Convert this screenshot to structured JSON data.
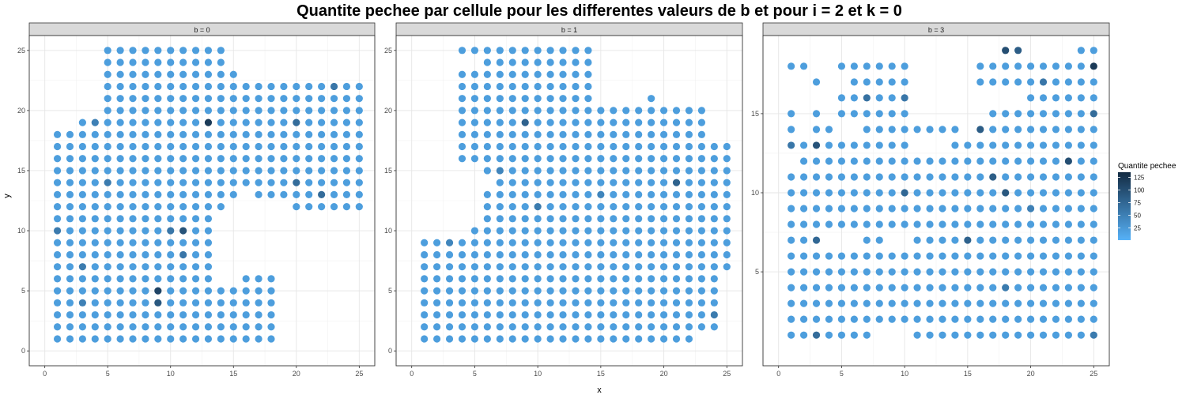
{
  "chart_data": {
    "type": "scatter",
    "title": "Quantite pechee par cellule pour les differentes valeurs de b et pour i = 2 et k = 0",
    "xlabel": "x",
    "ylabel": "y",
    "grid": true,
    "legend": {
      "title": "Quantite pechee",
      "placement": "right",
      "ticks": [
        125,
        100,
        75,
        50,
        25
      ],
      "range": [
        1,
        135
      ],
      "low_color": "#56B1F7",
      "high_color": "#132B43"
    },
    "panels": [
      {
        "strip": "b = 0",
        "xlim": [
          0,
          25
        ],
        "ylim": [
          0,
          25
        ],
        "xticks": [
          0,
          5,
          10,
          15,
          20,
          25
        ],
        "yticks": [
          0,
          5,
          10,
          15,
          20,
          25
        ],
        "rows": [
          {
            "y": 25,
            "xs": [
              [
                5,
                14
              ]
            ]
          },
          {
            "y": 24,
            "xs": [
              [
                5,
                14
              ]
            ]
          },
          {
            "y": 23,
            "xs": [
              [
                5,
                15
              ]
            ]
          },
          {
            "y": 22,
            "xs": [
              [
                5,
                25
              ]
            ]
          },
          {
            "y": 21,
            "xs": [
              [
                5,
                25
              ]
            ]
          },
          {
            "y": 20,
            "xs": [
              [
                5,
                25
              ]
            ]
          },
          {
            "y": 19,
            "xs": [
              [
                3,
                25
              ]
            ]
          },
          {
            "y": 18,
            "xs": [
              [
                1,
                25
              ]
            ]
          },
          {
            "y": 17,
            "xs": [
              [
                1,
                25
              ]
            ]
          },
          {
            "y": 16,
            "xs": [
              [
                1,
                25
              ]
            ]
          },
          {
            "y": 15,
            "xs": [
              [
                1,
                25
              ]
            ]
          },
          {
            "y": 14,
            "xs": [
              [
                1,
                25
              ]
            ]
          },
          {
            "y": 13,
            "xs": [
              [
                1,
                15
              ],
              [
                17,
                25
              ]
            ]
          },
          {
            "y": 12,
            "xs": [
              [
                1,
                14
              ],
              [
                20,
                25
              ]
            ]
          },
          {
            "y": 11,
            "xs": [
              [
                1,
                13
              ]
            ]
          },
          {
            "y": 10,
            "xs": [
              [
                1,
                13
              ]
            ]
          },
          {
            "y": 9,
            "xs": [
              [
                1,
                13
              ]
            ]
          },
          {
            "y": 8,
            "xs": [
              [
                1,
                13
              ]
            ]
          },
          {
            "y": 7,
            "xs": [
              [
                1,
                13
              ]
            ]
          },
          {
            "y": 6,
            "xs": [
              [
                1,
                13
              ],
              [
                16,
                18
              ]
            ]
          },
          {
            "y": 5,
            "xs": [
              [
                1,
                18
              ]
            ]
          },
          {
            "y": 4,
            "xs": [
              [
                1,
                18
              ]
            ]
          },
          {
            "y": 3,
            "xs": [
              [
                1,
                18
              ]
            ]
          },
          {
            "y": 2,
            "xs": [
              [
                1,
                18
              ]
            ]
          },
          {
            "y": 1,
            "xs": [
              [
                1,
                18
              ]
            ]
          }
        ],
        "highlights": [
          {
            "x": 13,
            "y": 19,
            "value": 120
          },
          {
            "x": 9,
            "y": 5,
            "value": 110
          },
          {
            "x": 11,
            "y": 10,
            "value": 95
          },
          {
            "x": 9,
            "y": 4,
            "value": 90
          },
          {
            "x": 20,
            "y": 19,
            "value": 70
          },
          {
            "x": 20,
            "y": 14,
            "value": 70
          },
          {
            "x": 22,
            "y": 13,
            "value": 70
          },
          {
            "x": 23,
            "y": 22,
            "value": 60
          },
          {
            "x": 10,
            "y": 10,
            "value": 60
          },
          {
            "x": 11,
            "y": 8,
            "value": 60
          },
          {
            "x": 1,
            "y": 10,
            "value": 55
          },
          {
            "x": 3,
            "y": 7,
            "value": 55
          },
          {
            "x": 5,
            "y": 14,
            "value": 55
          },
          {
            "x": 3,
            "y": 4,
            "value": 50
          },
          {
            "x": 4,
            "y": 19,
            "value": 50
          }
        ]
      },
      {
        "strip": "b = 1",
        "xlim": [
          0,
          25
        ],
        "ylim": [
          0,
          25
        ],
        "xticks": [
          0,
          5,
          10,
          15,
          20,
          25
        ],
        "yticks": [
          0,
          5,
          10,
          15,
          20,
          25
        ],
        "rows": [
          {
            "y": 25,
            "xs": [
              [
                4,
                14
              ]
            ]
          },
          {
            "y": 24,
            "xs": [
              [
                6,
                14
              ]
            ]
          },
          {
            "y": 23,
            "xs": [
              [
                4,
                14
              ]
            ]
          },
          {
            "y": 22,
            "xs": [
              [
                4,
                14
              ]
            ]
          },
          {
            "y": 21,
            "xs": [
              [
                4,
                14
              ],
              [
                19,
                19
              ]
            ]
          },
          {
            "y": 20,
            "xs": [
              [
                4,
                23
              ]
            ]
          },
          {
            "y": 19,
            "xs": [
              [
                4,
                23
              ]
            ]
          },
          {
            "y": 18,
            "xs": [
              [
                4,
                23
              ]
            ]
          },
          {
            "y": 17,
            "xs": [
              [
                4,
                25
              ]
            ]
          },
          {
            "y": 16,
            "xs": [
              [
                4,
                25
              ]
            ]
          },
          {
            "y": 15,
            "xs": [
              [
                6,
                25
              ]
            ]
          },
          {
            "y": 14,
            "xs": [
              [
                7,
                25
              ]
            ]
          },
          {
            "y": 13,
            "xs": [
              [
                6,
                25
              ]
            ]
          },
          {
            "y": 12,
            "xs": [
              [
                6,
                25
              ]
            ]
          },
          {
            "y": 11,
            "xs": [
              [
                6,
                25
              ]
            ]
          },
          {
            "y": 10,
            "xs": [
              [
                5,
                25
              ]
            ]
          },
          {
            "y": 9,
            "xs": [
              [
                1,
                25
              ]
            ]
          },
          {
            "y": 8,
            "xs": [
              [
                1,
                25
              ]
            ]
          },
          {
            "y": 7,
            "xs": [
              [
                1,
                25
              ]
            ]
          },
          {
            "y": 6,
            "xs": [
              [
                1,
                24
              ]
            ]
          },
          {
            "y": 5,
            "xs": [
              [
                1,
                24
              ]
            ]
          },
          {
            "y": 4,
            "xs": [
              [
                1,
                24
              ]
            ]
          },
          {
            "y": 3,
            "xs": [
              [
                1,
                24
              ]
            ]
          },
          {
            "y": 2,
            "xs": [
              [
                1,
                24
              ]
            ]
          },
          {
            "y": 1,
            "xs": [
              [
                1,
                22
              ]
            ]
          }
        ],
        "highlights": [
          {
            "x": 9,
            "y": 19,
            "value": 80
          },
          {
            "x": 21,
            "y": 14,
            "value": 80
          },
          {
            "x": 10,
            "y": 12,
            "value": 55
          },
          {
            "x": 24,
            "y": 3,
            "value": 55
          },
          {
            "x": 3,
            "y": 9,
            "value": 45
          },
          {
            "x": 15,
            "y": 13,
            "value": 45
          },
          {
            "x": 7,
            "y": 15,
            "value": 45
          }
        ]
      },
      {
        "strip": "b = 3",
        "xlim": [
          0,
          25
        ],
        "ylim": [
          0,
          19
        ],
        "xticks": [
          0,
          5,
          10,
          15,
          20,
          25
        ],
        "yticks": [
          5,
          10,
          15
        ],
        "rows": [
          {
            "y": 19,
            "xs": [
              [
                18,
                19
              ],
              [
                24,
                25
              ]
            ]
          },
          {
            "y": 18,
            "xs": [
              [
                1,
                2
              ],
              [
                5,
                10
              ],
              [
                16,
                25
              ]
            ]
          },
          {
            "y": 17,
            "xs": [
              [
                3,
                3
              ],
              [
                6,
                10
              ],
              [
                16,
                25
              ]
            ]
          },
          {
            "y": 16,
            "xs": [
              [
                5,
                10
              ],
              [
                20,
                25
              ]
            ]
          },
          {
            "y": 15,
            "xs": [
              [
                1,
                1
              ],
              [
                3,
                3
              ],
              [
                5,
                10
              ],
              [
                17,
                25
              ]
            ]
          },
          {
            "y": 14,
            "xs": [
              [
                1,
                1
              ],
              [
                3,
                4
              ],
              [
                7,
                14
              ],
              [
                16,
                25
              ]
            ]
          },
          {
            "y": 13,
            "xs": [
              [
                1,
                10
              ],
              [
                14,
                25
              ]
            ]
          },
          {
            "y": 12,
            "xs": [
              [
                2,
                25
              ]
            ]
          },
          {
            "y": 11,
            "xs": [
              [
                1,
                25
              ]
            ]
          },
          {
            "y": 10,
            "xs": [
              [
                1,
                25
              ]
            ]
          },
          {
            "y": 9,
            "xs": [
              [
                1,
                25
              ]
            ]
          },
          {
            "y": 8,
            "xs": [
              [
                1,
                25
              ]
            ]
          },
          {
            "y": 7,
            "xs": [
              [
                1,
                3
              ],
              [
                7,
                8
              ],
              [
                11,
                25
              ]
            ]
          },
          {
            "y": 6,
            "xs": [
              [
                1,
                25
              ]
            ]
          },
          {
            "y": 5,
            "xs": [
              [
                1,
                25
              ]
            ]
          },
          {
            "y": 4,
            "xs": [
              [
                1,
                25
              ]
            ]
          },
          {
            "y": 3,
            "xs": [
              [
                1,
                25
              ]
            ]
          },
          {
            "y": 2,
            "xs": [
              [
                1,
                25
              ]
            ]
          },
          {
            "y": 1,
            "xs": [
              [
                1,
                7
              ],
              [
                11,
                25
              ]
            ]
          }
        ],
        "highlights": [
          {
            "x": 25,
            "y": 18,
            "value": 120
          },
          {
            "x": 18,
            "y": 19,
            "value": 100
          },
          {
            "x": 23,
            "y": 12,
            "value": 100
          },
          {
            "x": 3,
            "y": 13,
            "value": 95
          },
          {
            "x": 18,
            "y": 10,
            "value": 90
          },
          {
            "x": 19,
            "y": 19,
            "value": 85
          },
          {
            "x": 16,
            "y": 14,
            "value": 85
          },
          {
            "x": 17,
            "y": 11,
            "value": 85
          },
          {
            "x": 15,
            "y": 7,
            "value": 80
          },
          {
            "x": 3,
            "y": 7,
            "value": 75
          },
          {
            "x": 10,
            "y": 10,
            "value": 75
          },
          {
            "x": 25,
            "y": 15,
            "value": 70
          },
          {
            "x": 3,
            "y": 1,
            "value": 70
          },
          {
            "x": 7,
            "y": 16,
            "value": 65
          },
          {
            "x": 10,
            "y": 16,
            "value": 60
          },
          {
            "x": 21,
            "y": 17,
            "value": 60
          },
          {
            "x": 1,
            "y": 13,
            "value": 60
          },
          {
            "x": 18,
            "y": 4,
            "value": 55
          },
          {
            "x": 20,
            "y": 9,
            "value": 50
          },
          {
            "x": 25,
            "y": 1,
            "value": 55
          }
        ]
      }
    ]
  }
}
